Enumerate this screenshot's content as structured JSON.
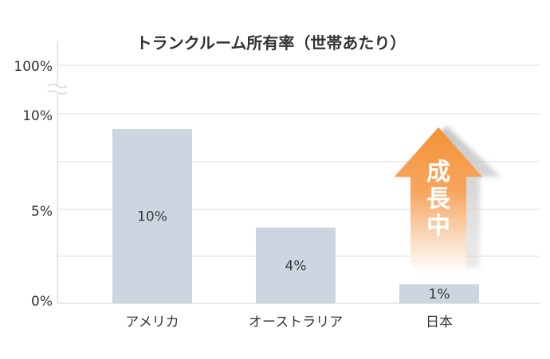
{
  "chart_data": {
    "type": "bar",
    "title": "トランクルーム所有率（世帯あたり）",
    "categories": [
      "アメリカ",
      "オーストラリア",
      "日本"
    ],
    "values": [
      10,
      4,
      1
    ],
    "value_labels": [
      "10%",
      "4%",
      "1%"
    ],
    "y_ticks": [
      "0%",
      "5%",
      "10%",
      "100%"
    ],
    "ylim": [
      0,
      100
    ],
    "axis_break": true,
    "grid": true,
    "bar_color": "#cdd5e0",
    "annotation": {
      "text": [
        "成",
        "長",
        "中"
      ],
      "color": "#f39234",
      "shape": "up-arrow"
    }
  }
}
